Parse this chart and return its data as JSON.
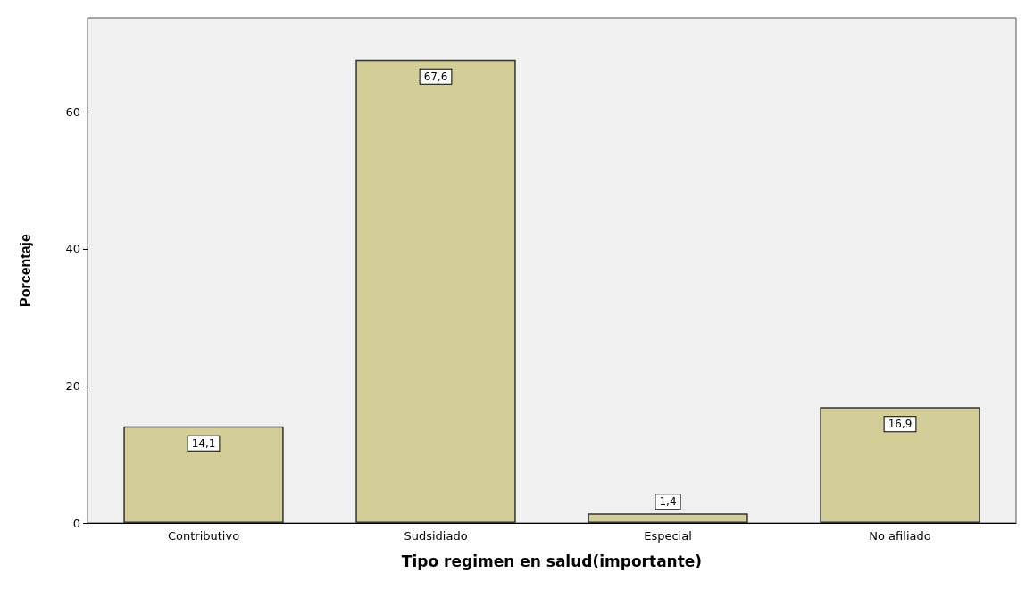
{
  "chart_data": {
    "type": "bar",
    "xlabel": "Tipo regimen en salud(importante)",
    "ylabel": "Porcentaje",
    "categories": [
      "Contributivo",
      "Sudsidiado",
      "Especial",
      "No afiliado"
    ],
    "values": [
      14.1,
      67.6,
      1.4,
      16.9
    ],
    "value_labels": [
      "14,1",
      "67,6",
      "1,4",
      "16,9"
    ],
    "color": "#d3ce97",
    "ylim": [
      0,
      73.7
    ],
    "yticks": [
      0,
      20,
      40,
      60
    ],
    "grid": false
  }
}
